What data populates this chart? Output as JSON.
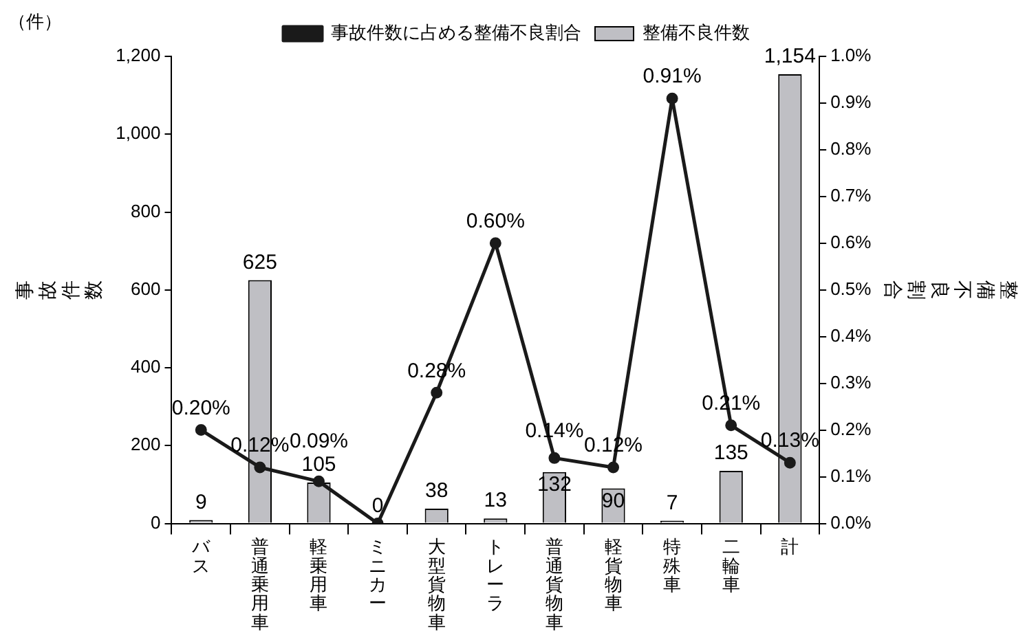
{
  "chart_data": {
    "type": "bar",
    "categories": [
      "バス",
      "普通乗用車",
      "軽乗用車",
      "ミニカー",
      "大型貨物車",
      "トレーラ",
      "普通貨物車",
      "軽貨物車",
      "特殊車",
      "二輪車",
      "計"
    ],
    "ylabel": "事故件数",
    "y2label": "整備不良割合",
    "annotations": [
      "（件）"
    ],
    "series": [
      {
        "name": "整備不良件数",
        "color": "#bfbfc4",
        "values": [
          9,
          625,
          105,
          0,
          38,
          13,
          132,
          90,
          7,
          135,
          1154
        ],
        "value_labels": [
          "9",
          "625",
          "105",
          "0",
          "38",
          "13",
          "132",
          "90",
          "7",
          "135",
          "1,154"
        ]
      },
      {
        "name": "事故件数に占める整備不良割合",
        "type": "line",
        "axis": "y2",
        "color": "#1a1a1a",
        "values": [
          0.2,
          0.12,
          0.09,
          0,
          0.28,
          0.6,
          0.14,
          0.12,
          0.91,
          0.21,
          0.13
        ],
        "value_labels": [
          "0.20%",
          "0.12%",
          "0.09%",
          null,
          "0.28%",
          "0.60%",
          "0.14%",
          "0.12%",
          "0.91%",
          "0.21%",
          "0.13%"
        ]
      }
    ],
    "ylim": [
      0,
      1200
    ],
    "yticks": [
      0,
      200,
      400,
      600,
      800,
      {
        "value": 1000,
        "label": "1,000"
      },
      {
        "value": 1200,
        "label": "1,200"
      }
    ],
    "y2lim": [
      0,
      1.0
    ],
    "y2ticks": [
      {
        "value": 0,
        "label": "0.0%"
      },
      {
        "value": 0.1,
        "label": "0.1%"
      },
      {
        "value": 0.2,
        "label": "0.2%"
      },
      {
        "value": 0.3,
        "label": "0.3%"
      },
      {
        "value": 0.4,
        "label": "0.4%"
      },
      {
        "value": 0.5,
        "label": "0.5%"
      },
      {
        "value": 0.6,
        "label": "0.6%"
      },
      {
        "value": 0.7,
        "label": "0.7%"
      },
      {
        "value": 0.8,
        "label": "0.8%"
      },
      {
        "value": 0.9,
        "label": "0.9%"
      },
      {
        "value": 1.0,
        "label": "1.0%"
      }
    ],
    "grid": false,
    "legend": "top",
    "marker": "circle",
    "line_style": "solid"
  }
}
